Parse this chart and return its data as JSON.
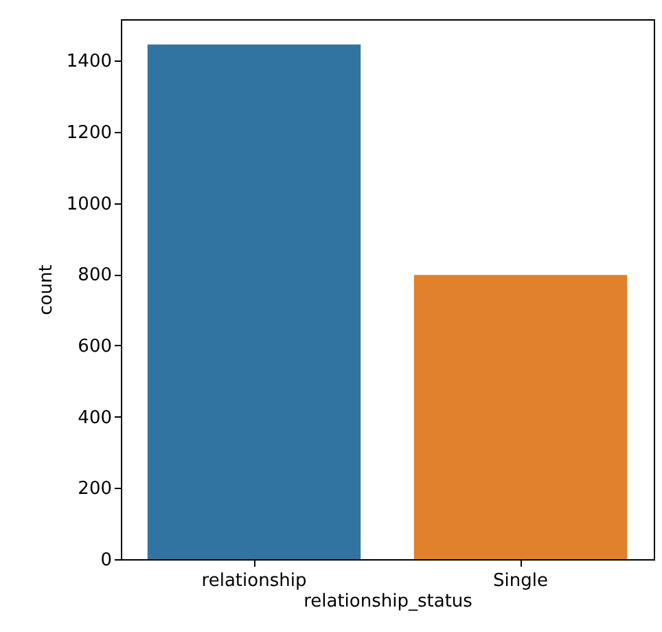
{
  "chart_data": {
    "type": "bar",
    "xlabel": "relationship_status",
    "ylabel": "count",
    "categories": [
      "relationship",
      "Single"
    ],
    "values": [
      1445,
      798
    ],
    "colors": [
      "#3274a1",
      "#e1812c"
    ],
    "ylim": [
      0,
      1516
    ],
    "yticks": [
      0,
      200,
      400,
      600,
      800,
      1000,
      1200,
      1400
    ],
    "grid": false
  }
}
